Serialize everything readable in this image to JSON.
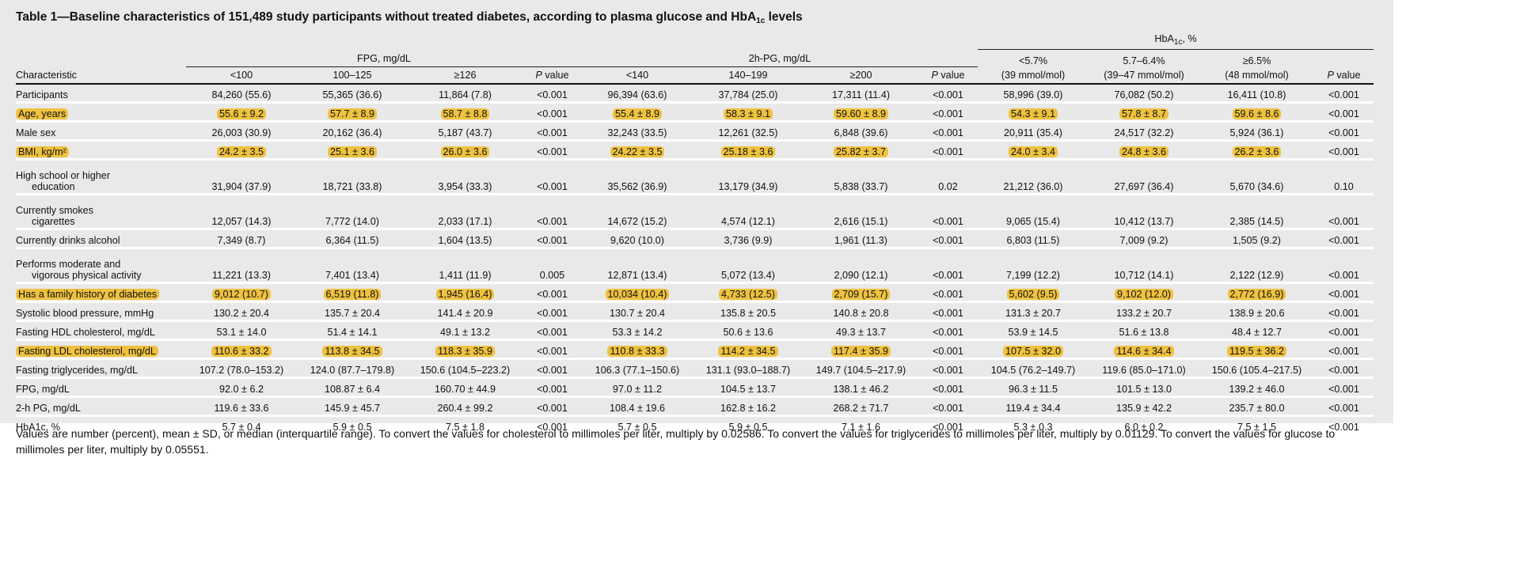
{
  "title": {
    "text": "Table 1—Baseline characteristics of 151,489 study participants without treated diabetes, according to plasma glucose and HbA",
    "sub": "1c",
    "end": " levels"
  },
  "groups": {
    "fpg": "FPG, mg/dL",
    "pg": "2h-PG, mg/dL",
    "hba": "HbA",
    "hba_sub": "1c",
    "hba_end": ", %"
  },
  "columns": {
    "characteristic": "Characteristic",
    "p": "P",
    "p_rest": " value",
    "fpg": [
      "<100",
      "100–125",
      "≥126"
    ],
    "pg": [
      "<140",
      "140–199",
      "≥200"
    ],
    "hba": [
      [
        "<5.7%",
        "(39 mmol/mol)"
      ],
      [
        "5.7–6.4%",
        "(39–47 mmol/mol)"
      ],
      [
        "≥6.5%",
        "(48 mmol/mol)"
      ]
    ]
  },
  "rows": [
    {
      "label": [
        "Participants"
      ],
      "hl": false,
      "v": [
        "84,260 (55.6)",
        "55,365 (36.6)",
        "11,864 (7.8)",
        "<0.001",
        "96,394 (63.6)",
        "37,784 (25.0)",
        "17,311 (11.4)",
        "<0.001",
        "58,996 (39.0)",
        "76,082 (50.2)",
        "16,411 (10.8)",
        "<0.001"
      ]
    },
    {
      "label": [
        "Age, years"
      ],
      "hl": true,
      "v": [
        "55.6 ± 9.2",
        "57.7 ± 8.9",
        "58.7 ± 8.8",
        "<0.001",
        "55.4 ± 8.9",
        "58.3 ± 9.1",
        "59.60 ± 8.9",
        "<0.001",
        "54.3 ± 9.1",
        "57.8 ± 8.7",
        "59.6 ± 8.6",
        "<0.001"
      ]
    },
    {
      "label": [
        "Male sex"
      ],
      "hl": false,
      "v": [
        "26,003 (30.9)",
        "20,162 (36.4)",
        "5,187 (43.7)",
        "<0.001",
        "32,243 (33.5)",
        "12,261 (32.5)",
        "6,848 (39.6)",
        "<0.001",
        "20,911 (35.4)",
        "24,517 (32.2)",
        "5,924 (36.1)",
        "<0.001"
      ]
    },
    {
      "label": [
        "BMI, kg/m²"
      ],
      "hl": true,
      "v": [
        "24.2 ± 3.5",
        "25.1 ± 3.6",
        "26.0 ± 3.6",
        "<0.001",
        "24.22 ± 3.5",
        "25.18 ± 3.6",
        "25.82 ± 3.7",
        "<0.001",
        "24.0 ± 3.4",
        "24.8 ± 3.6",
        "26.2 ± 3.6",
        "<0.001"
      ]
    },
    {
      "label": [
        "High school or higher",
        "education"
      ],
      "hl": false,
      "v": [
        "31,904 (37.9)",
        "18,721 (33.8)",
        "3,954 (33.3)",
        "<0.001",
        "35,562 (36.9)",
        "13,179 (34.9)",
        "5,838 (33.7)",
        "0.02",
        "21,212 (36.0)",
        "27,697 (36.4)",
        "5,670 (34.6)",
        "0.10"
      ]
    },
    {
      "label": [
        "Currently smokes",
        "cigarettes"
      ],
      "hl": false,
      "v": [
        "12,057 (14.3)",
        "7,772 (14.0)",
        "2,033 (17.1)",
        "<0.001",
        "14,672 (15.2)",
        "4,574 (12.1)",
        "2,616 (15.1)",
        "<0.001",
        "9,065 (15.4)",
        "10,412 (13.7)",
        "2,385 (14.5)",
        "<0.001"
      ]
    },
    {
      "label": [
        "Currently drinks alcohol"
      ],
      "hl": false,
      "v": [
        "7,349 (8.7)",
        "6,364 (11.5)",
        "1,604 (13.5)",
        "<0.001",
        "9,620 (10.0)",
        "3,736 (9.9)",
        "1,961 (11.3)",
        "<0.001",
        "6,803 (11.5)",
        "7,009 (9.2)",
        "1,505 (9.2)",
        "<0.001"
      ]
    },
    {
      "label": [
        "Performs moderate and",
        "vigorous physical activity"
      ],
      "hl": false,
      "v": [
        "11,221 (13.3)",
        "7,401 (13.4)",
        "1,411 (11.9)",
        "0.005",
        "12,871 (13.4)",
        "5,072 (13.4)",
        "2,090 (12.1)",
        "<0.001",
        "7,199 (12.2)",
        "10,712 (14.1)",
        "2,122 (12.9)",
        "<0.001"
      ]
    },
    {
      "label": [
        "Has a family history of diabetes"
      ],
      "hl": true,
      "v": [
        "9,012 (10.7)",
        "6,519 (11.8)",
        "1,945 (16.4)",
        "<0.001",
        "10,034 (10.4)",
        "4,733 (12.5)",
        "2,709 (15.7)",
        "<0.001",
        "5,602 (9.5)",
        "9,102 (12.0)",
        "2,772 (16.9)",
        "<0.001"
      ]
    },
    {
      "label": [
        "Systolic blood pressure, mmHg"
      ],
      "hl": false,
      "v": [
        "130.2 ± 20.4",
        "135.7 ± 20.4",
        "141.4 ± 20.9",
        "<0.001",
        "130.7 ± 20.4",
        "135.8 ± 20.5",
        "140.8 ± 20.8",
        "<0.001",
        "131.3 ± 20.7",
        "133.2 ± 20.7",
        "138.9 ± 20.6",
        "<0.001"
      ]
    },
    {
      "label": [
        "Fasting HDL cholesterol, mg/dL"
      ],
      "hl": false,
      "v": [
        "53.1 ± 14.0",
        "51.4 ± 14.1",
        "49.1 ± 13.2",
        "<0.001",
        "53.3 ± 14.2",
        "50.6 ± 13.6",
        "49.3 ± 13.7",
        "<0.001",
        "53.9 ± 14.5",
        "51.6 ± 13.8",
        "48.4 ± 12.7",
        "<0.001"
      ]
    },
    {
      "label": [
        "Fasting LDL cholesterol, mg/dL"
      ],
      "hl": true,
      "v": [
        "110.6 ± 33.2",
        "113.8 ± 34.5",
        "118.3 ± 35.9",
        "<0.001",
        "110.8 ± 33.3",
        "114.2 ± 34.5",
        "117.4 ± 35.9",
        "<0.001",
        "107.5 ± 32.0",
        "114.6 ± 34.4",
        "119.5 ± 36.2",
        "<0.001"
      ]
    },
    {
      "label": [
        "Fasting triglycerides, mg/dL"
      ],
      "hl": false,
      "v": [
        "107.2 (78.0–153.2)",
        "124.0 (87.7–179.8)",
        "150.6 (104.5–223.2)",
        "<0.001",
        "106.3 (77.1–150.6)",
        "131.1 (93.0–188.7)",
        "149.7 (104.5–217.9)",
        "<0.001",
        "104.5 (76.2–149.7)",
        "119.6 (85.0–171.0)",
        "150.6 (105.4–217.5)",
        "<0.001"
      ]
    },
    {
      "label": [
        "FPG, mg/dL"
      ],
      "hl": false,
      "v": [
        "92.0 ± 6.2",
        "108.87 ± 6.4",
        "160.70 ± 44.9",
        "<0.001",
        "97.0 ± 11.2",
        "104.5 ± 13.7",
        "138.1 ± 46.2",
        "<0.001",
        "96.3 ± 11.5",
        "101.5 ± 13.0",
        "139.2 ± 46.0",
        "<0.001"
      ]
    },
    {
      "label": [
        "2-h PG, mg/dL"
      ],
      "hl": false,
      "v": [
        "119.6 ± 33.6",
        "145.9 ± 45.7",
        "260.4 ± 99.2",
        "<0.001",
        "108.4 ± 19.6",
        "162.8 ± 16.2",
        "268.2 ± 71.7",
        "<0.001",
        "119.4 ± 34.4",
        "135.9 ± 42.2",
        "235.7 ± 80.0",
        "<0.001"
      ]
    },
    {
      "label": [
        "HbA1c, %"
      ],
      "hl": false,
      "v": [
        "5.7 ± 0.4",
        "5.9 ± 0.5",
        "7.5 ± 1.8",
        "<0.001",
        "5.7 ± 0.5",
        "5.9 ± 0.5",
        "7.1 ± 1.6",
        "<0.001",
        "5.3 ± 0.3",
        "6.0 ± 0.2",
        "7.5 ± 1.5",
        "<0.001"
      ]
    }
  ],
  "footnote": "Values are number (percent), mean ± SD, or median (interquartile range). To convert the values for cholesterol to millimoles per liter, multiply by 0.02586. To convert the values for triglycerides to millimoles per liter, multiply by 0.01129. To convert the values for glucose to millimoles per liter, multiply by 0.05551.",
  "colors": {
    "highlight": "#efc23f",
    "background": "#e9e9e9"
  }
}
